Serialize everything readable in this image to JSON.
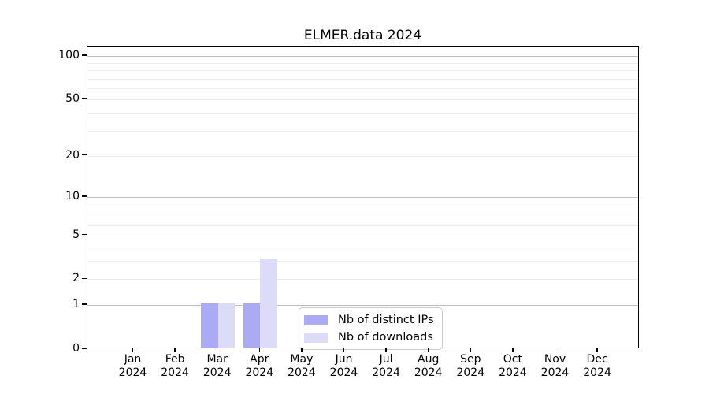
{
  "title": "ELMER.data 2024",
  "chart_data": {
    "type": "bar",
    "title": "ELMER.data 2024",
    "categories": [
      "Jan",
      "Feb",
      "Mar",
      "Apr",
      "May",
      "Jun",
      "Jul",
      "Aug",
      "Sep",
      "Oct",
      "Nov",
      "Dec"
    ],
    "category_year": "2024",
    "series": [
      {
        "name": "Nb of distinct IPs",
        "color": "#aaaaf5",
        "values": [
          0,
          0,
          1,
          1,
          0,
          0,
          0,
          0,
          0,
          0,
          0,
          0
        ]
      },
      {
        "name": "Nb of downloads",
        "color": "#dcdcf8",
        "values": [
          0,
          0,
          1,
          3,
          0,
          0,
          0,
          0,
          0,
          0,
          0,
          0
        ]
      }
    ],
    "y_axis": {
      "scale": "log1p",
      "ticks": [
        0,
        1,
        2,
        5,
        10,
        20,
        50,
        100
      ],
      "minor_gridlines": [
        3,
        4,
        6,
        7,
        8,
        9,
        30,
        40,
        60,
        70,
        80,
        90
      ],
      "decade_gridlines": [
        1,
        10,
        100
      ],
      "max": 115
    },
    "x_axis": {
      "label_line2": "2024"
    },
    "legend": {
      "position": "bottom-center-inside"
    },
    "grid": true
  }
}
